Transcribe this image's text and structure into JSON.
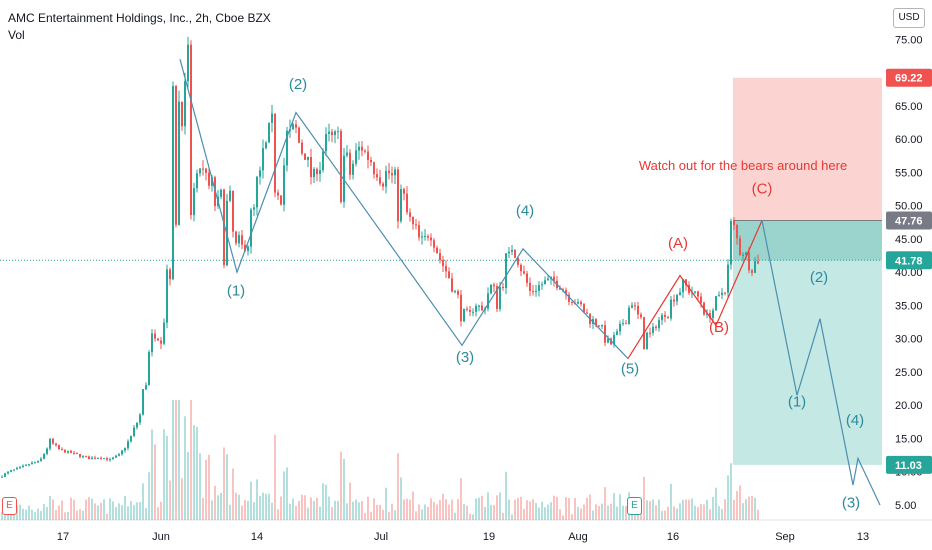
{
  "header": {
    "title": "AMC Entertainment Holdings, Inc., 2h, Cboe BZX",
    "volume_label": "Vol",
    "currency": "USD"
  },
  "colors": {
    "up": "#26a69a",
    "down": "#ef5350",
    "wave_blue": "#2d8a9c",
    "wave_red": "#e53935",
    "stop_zone": "#fbd3d1",
    "target_zone": "#c4e8e4",
    "price_line": "#26a69a"
  },
  "chart_data": {
    "type": "candlestick",
    "title": "AMC Entertainment Holdings, Inc., 2h, Cboe BZX",
    "ylim": [
      2,
      80
    ],
    "y_ticks": [
      5,
      10,
      15,
      20,
      25,
      30,
      35,
      40,
      45,
      50,
      55,
      60,
      65,
      70,
      75
    ],
    "x_ticks": [
      "17",
      "Jun",
      "14",
      "Jul",
      "19",
      "Aug",
      "16",
      "Sep",
      "13"
    ],
    "price_path": [
      [
        0,
        9.2
      ],
      [
        10,
        10.1
      ],
      [
        20,
        10.6
      ],
      [
        30,
        11.2
      ],
      [
        40,
        11.6
      ],
      [
        50,
        14.5
      ],
      [
        60,
        13.2
      ],
      [
        70,
        12.9
      ],
      [
        80,
        12.4
      ],
      [
        90,
        12.0
      ],
      [
        100,
        12.2
      ],
      [
        110,
        11.8
      ],
      [
        120,
        12.6
      ],
      [
        130,
        14.9
      ],
      [
        140,
        18.5
      ],
      [
        148,
        26.0
      ],
      [
        155,
        32.0
      ],
      [
        162,
        36.0
      ],
      [
        170,
        46.0
      ],
      [
        176,
        58.0
      ],
      [
        180,
        70.0
      ],
      [
        185,
        64.0
      ],
      [
        190,
        55.0
      ],
      [
        195,
        50.0
      ],
      [
        200,
        57.0
      ],
      [
        207,
        48.0
      ],
      [
        213,
        52.0
      ],
      [
        220,
        49.0
      ],
      [
        228,
        47.0
      ],
      [
        236,
        41.0
      ],
      [
        243,
        43.0
      ],
      [
        250,
        46.0
      ],
      [
        258,
        53.0
      ],
      [
        264,
        58.0
      ],
      [
        270,
        61.0
      ],
      [
        276,
        57.0
      ],
      [
        282,
        55.0
      ],
      [
        288,
        60.0
      ],
      [
        294,
        62.0
      ],
      [
        300,
        59.0
      ],
      [
        307,
        57.0
      ],
      [
        313,
        54.0
      ],
      [
        320,
        58.0
      ],
      [
        330,
        60.0
      ],
      [
        340,
        57.0
      ],
      [
        350,
        55.0
      ],
      [
        360,
        59.0
      ],
      [
        370,
        57.0
      ],
      [
        380,
        54.0
      ],
      [
        390,
        55.0
      ],
      [
        400,
        51.0
      ],
      [
        410,
        47.0
      ],
      [
        420,
        44.0
      ],
      [
        430,
        46.0
      ],
      [
        440,
        42.0
      ],
      [
        450,
        39.0
      ],
      [
        460,
        35.0
      ],
      [
        468,
        32.0
      ],
      [
        475,
        36.0
      ],
      [
        482,
        34.0
      ],
      [
        490,
        38.0
      ],
      [
        497,
        36.0
      ],
      [
        505,
        40.0
      ],
      [
        512,
        44.0
      ],
      [
        520,
        41.0
      ],
      [
        530,
        37.0
      ],
      [
        540,
        38.0
      ],
      [
        550,
        39.0
      ],
      [
        560,
        38.0
      ],
      [
        570,
        36.0
      ],
      [
        580,
        35.0
      ],
      [
        590,
        33.0
      ],
      [
        600,
        32.0
      ],
      [
        610,
        29.0
      ],
      [
        618,
        31.0
      ],
      [
        625,
        33.0
      ],
      [
        632,
        36.0
      ],
      [
        638,
        33.0
      ],
      [
        645,
        30.0
      ],
      [
        652,
        31.0
      ],
      [
        660,
        33.0
      ],
      [
        668,
        34.0
      ],
      [
        676,
        37.0
      ],
      [
        684,
        38.0
      ],
      [
        692,
        37.0
      ],
      [
        700,
        36.0
      ],
      [
        708,
        33.0
      ],
      [
        715,
        35.0
      ],
      [
        722,
        37.0
      ],
      [
        728,
        40.0
      ],
      [
        732,
        47.0
      ],
      [
        738,
        44.0
      ],
      [
        745,
        43.0
      ],
      [
        752,
        41.0
      ],
      [
        760,
        41.78
      ]
    ],
    "last_price": 41.78,
    "price_labels": [
      {
        "value": 69.22,
        "label": "69.22",
        "color": "#ef5350"
      },
      {
        "value": 47.76,
        "label": "47.76",
        "color": "#787b86"
      },
      {
        "value": 41.78,
        "label": "41.78",
        "color": "#26a69a"
      },
      {
        "value": 11.03,
        "label": "11.03",
        "color": "#26a69a"
      }
    ],
    "position_tool": {
      "stop": 69.22,
      "entry": 47.76,
      "target": 11.03
    },
    "wave_labels_blue": [
      {
        "text": "(1)",
        "x": 236,
        "y": 36.5
      },
      {
        "text": "(2)",
        "x": 298,
        "y": 67.5
      },
      {
        "text": "(3)",
        "x": 465,
        "y": 26.5
      },
      {
        "text": "(4)",
        "x": 525,
        "y": 48.5
      },
      {
        "text": "(5)",
        "x": 630,
        "y": 24.8
      },
      {
        "text": "(1)",
        "x": 797,
        "y": 19.8
      },
      {
        "text": "(2)",
        "x": 819,
        "y": 38.5
      },
      {
        "text": "(3)",
        "x": 851,
        "y": 4.6
      },
      {
        "text": "(4)",
        "x": 855,
        "y": 17.0
      }
    ],
    "wave_labels_red": [
      {
        "text": "(A)",
        "x": 678,
        "y": 43.6
      },
      {
        "text": "(B)",
        "x": 719,
        "y": 31.0
      },
      {
        "text": "(C)",
        "x": 762,
        "y": 51.8
      }
    ],
    "wave_path_blue": [
      [
        180,
        72.0
      ],
      [
        237,
        40.0
      ],
      [
        296,
        64.0
      ],
      [
        462,
        29.0
      ],
      [
        523,
        43.5
      ],
      [
        628,
        27.0
      ]
    ],
    "wave_path_red": [
      [
        628,
        27.0
      ],
      [
        680,
        39.5
      ],
      [
        716,
        32.0
      ],
      [
        762,
        47.76
      ]
    ],
    "projection_path": [
      [
        762,
        47.76
      ],
      [
        797,
        21.5
      ],
      [
        820,
        33.0
      ],
      [
        853,
        8.0
      ],
      [
        858,
        12.0
      ],
      [
        880,
        5.0
      ]
    ],
    "annotation": "Watch out for the bears around here"
  }
}
